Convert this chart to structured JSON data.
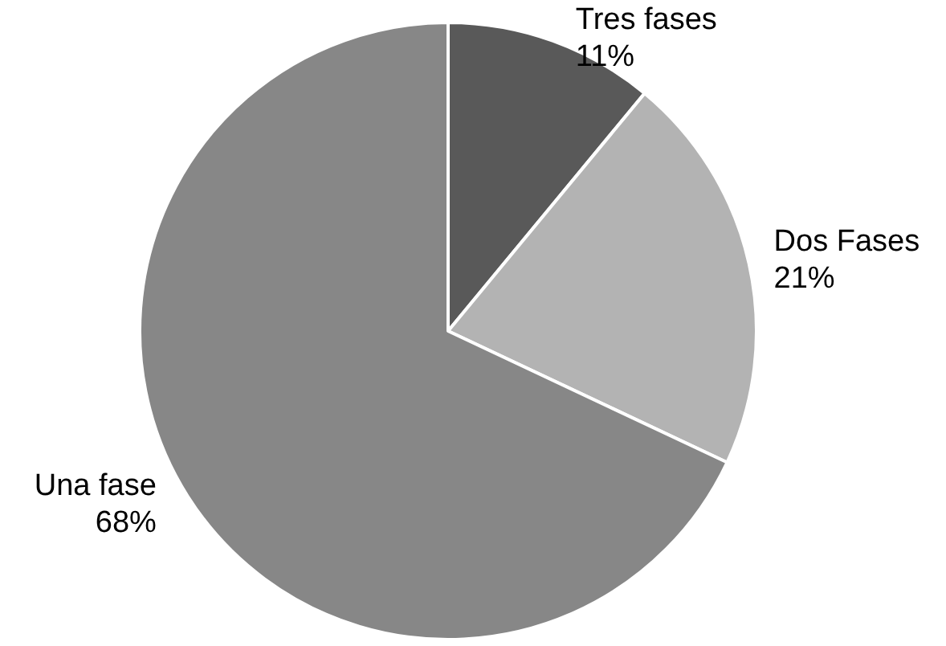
{
  "chart_data": {
    "type": "pie",
    "categories": [
      "Tres fases",
      "Dos Fases",
      "Una fase"
    ],
    "values": [
      11,
      21,
      68
    ],
    "colors": [
      "#595959",
      "#b3b3b3",
      "#878787"
    ],
    "value_labels": [
      "11%",
      "21%",
      "68%"
    ]
  }
}
